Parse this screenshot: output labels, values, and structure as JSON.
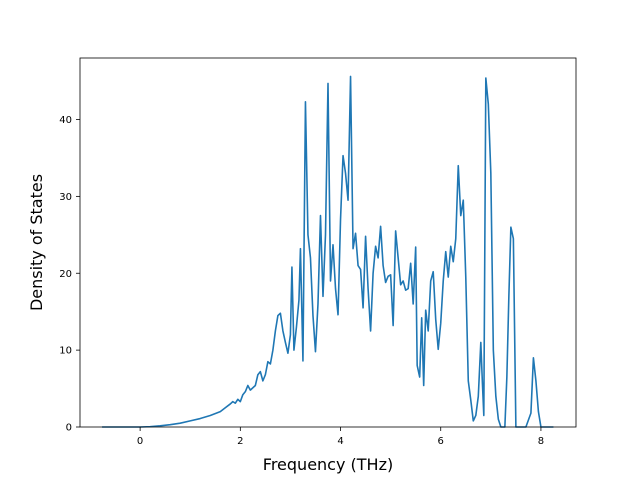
{
  "chart_data": {
    "type": "line",
    "title": "",
    "xlabel": "Frequency (THz)",
    "ylabel": "Density of States",
    "xlim": [
      -1.2,
      8.7
    ],
    "ylim": [
      0,
      48
    ],
    "x_ticks": [
      0,
      2,
      4,
      6,
      8
    ],
    "y_ticks": [
      0,
      10,
      20,
      30,
      40
    ],
    "x_tick_labels": [
      "0",
      "2",
      "4",
      "6",
      "8"
    ],
    "y_tick_labels": [
      "0",
      "10",
      "20",
      "30",
      "40"
    ],
    "grid": false,
    "legend": "none",
    "series": [
      {
        "color": "#1f77b4",
        "points": [
          [
            -0.76,
            0
          ],
          [
            -0.5,
            0
          ],
          [
            -0.2,
            0
          ],
          [
            0.0,
            0
          ],
          [
            0.2,
            0.05
          ],
          [
            0.4,
            0.15
          ],
          [
            0.6,
            0.3
          ],
          [
            0.8,
            0.5
          ],
          [
            1.0,
            0.8
          ],
          [
            1.2,
            1.1
          ],
          [
            1.4,
            1.5
          ],
          [
            1.6,
            2.0
          ],
          [
            1.7,
            2.5
          ],
          [
            1.8,
            3.0
          ],
          [
            1.85,
            3.3
          ],
          [
            1.9,
            3.1
          ],
          [
            1.95,
            3.6
          ],
          [
            2.0,
            3.3
          ],
          [
            2.05,
            4.2
          ],
          [
            2.1,
            4.6
          ],
          [
            2.15,
            5.4
          ],
          [
            2.2,
            4.8
          ],
          [
            2.3,
            5.4
          ],
          [
            2.35,
            6.8
          ],
          [
            2.4,
            7.2
          ],
          [
            2.45,
            6.0
          ],
          [
            2.5,
            6.8
          ],
          [
            2.55,
            8.5
          ],
          [
            2.6,
            8.2
          ],
          [
            2.65,
            10.0
          ],
          [
            2.7,
            12.5
          ],
          [
            2.75,
            14.5
          ],
          [
            2.8,
            14.8
          ],
          [
            2.85,
            12.5
          ],
          [
            2.9,
            11.0
          ],
          [
            2.95,
            9.6
          ],
          [
            3.0,
            12.0
          ],
          [
            3.03,
            20.8
          ],
          [
            3.07,
            10.0
          ],
          [
            3.12,
            13.0
          ],
          [
            3.17,
            16.5
          ],
          [
            3.2,
            23.2
          ],
          [
            3.25,
            8.6
          ],
          [
            3.3,
            42.3
          ],
          [
            3.35,
            25.0
          ],
          [
            3.4,
            22.0
          ],
          [
            3.45,
            14.5
          ],
          [
            3.5,
            9.8
          ],
          [
            3.55,
            16.0
          ],
          [
            3.6,
            27.5
          ],
          [
            3.65,
            17.0
          ],
          [
            3.7,
            25.0
          ],
          [
            3.75,
            44.7
          ],
          [
            3.8,
            19.0
          ],
          [
            3.85,
            23.7
          ],
          [
            3.9,
            18.0
          ],
          [
            3.95,
            14.6
          ],
          [
            4.0,
            27.0
          ],
          [
            4.05,
            35.3
          ],
          [
            4.1,
            33.0
          ],
          [
            4.15,
            29.5
          ],
          [
            4.2,
            45.6
          ],
          [
            4.25,
            23.2
          ],
          [
            4.3,
            25.2
          ],
          [
            4.35,
            21.0
          ],
          [
            4.4,
            20.5
          ],
          [
            4.45,
            15.5
          ],
          [
            4.5,
            24.8
          ],
          [
            4.55,
            18.0
          ],
          [
            4.6,
            12.5
          ],
          [
            4.65,
            20.0
          ],
          [
            4.7,
            23.5
          ],
          [
            4.75,
            22.0
          ],
          [
            4.8,
            26.1
          ],
          [
            4.85,
            21.0
          ],
          [
            4.9,
            18.8
          ],
          [
            4.95,
            19.6
          ],
          [
            5.0,
            19.8
          ],
          [
            5.05,
            13.2
          ],
          [
            5.1,
            25.5
          ],
          [
            5.15,
            22.0
          ],
          [
            5.2,
            18.5
          ],
          [
            5.25,
            19.0
          ],
          [
            5.3,
            17.8
          ],
          [
            5.35,
            18.0
          ],
          [
            5.4,
            21.3
          ],
          [
            5.45,
            16.0
          ],
          [
            5.5,
            23.4
          ],
          [
            5.53,
            8.0
          ],
          [
            5.58,
            6.5
          ],
          [
            5.62,
            14.2
          ],
          [
            5.66,
            5.4
          ],
          [
            5.7,
            15.2
          ],
          [
            5.75,
            12.5
          ],
          [
            5.8,
            19.0
          ],
          [
            5.85,
            20.2
          ],
          [
            5.9,
            14.0
          ],
          [
            5.95,
            10.1
          ],
          [
            6.0,
            13.5
          ],
          [
            6.05,
            19.0
          ],
          [
            6.1,
            22.8
          ],
          [
            6.15,
            19.5
          ],
          [
            6.2,
            23.5
          ],
          [
            6.25,
            21.5
          ],
          [
            6.3,
            24.5
          ],
          [
            6.35,
            34.0
          ],
          [
            6.4,
            27.5
          ],
          [
            6.45,
            29.5
          ],
          [
            6.5,
            19.5
          ],
          [
            6.55,
            6.0
          ],
          [
            6.6,
            3.5
          ],
          [
            6.65,
            0.8
          ],
          [
            6.7,
            1.5
          ],
          [
            6.75,
            4.0
          ],
          [
            6.8,
            11.0
          ],
          [
            6.83,
            6.0
          ],
          [
            6.86,
            1.5
          ],
          [
            6.9,
            45.4
          ],
          [
            6.95,
            42.0
          ],
          [
            7.0,
            33.0
          ],
          [
            7.05,
            10.0
          ],
          [
            7.1,
            4.0
          ],
          [
            7.15,
            1.0
          ],
          [
            7.2,
            0
          ],
          [
            7.28,
            0
          ],
          [
            7.32,
            6.5
          ],
          [
            7.36,
            17.0
          ],
          [
            7.4,
            26.0
          ],
          [
            7.45,
            24.5
          ],
          [
            7.5,
            0
          ],
          [
            7.6,
            0
          ],
          [
            7.7,
            0
          ],
          [
            7.8,
            1.8
          ],
          [
            7.85,
            9.0
          ],
          [
            7.9,
            6.0
          ],
          [
            7.95,
            2.0
          ],
          [
            8.0,
            0
          ],
          [
            8.1,
            0
          ],
          [
            8.25,
            0
          ]
        ]
      }
    ]
  }
}
